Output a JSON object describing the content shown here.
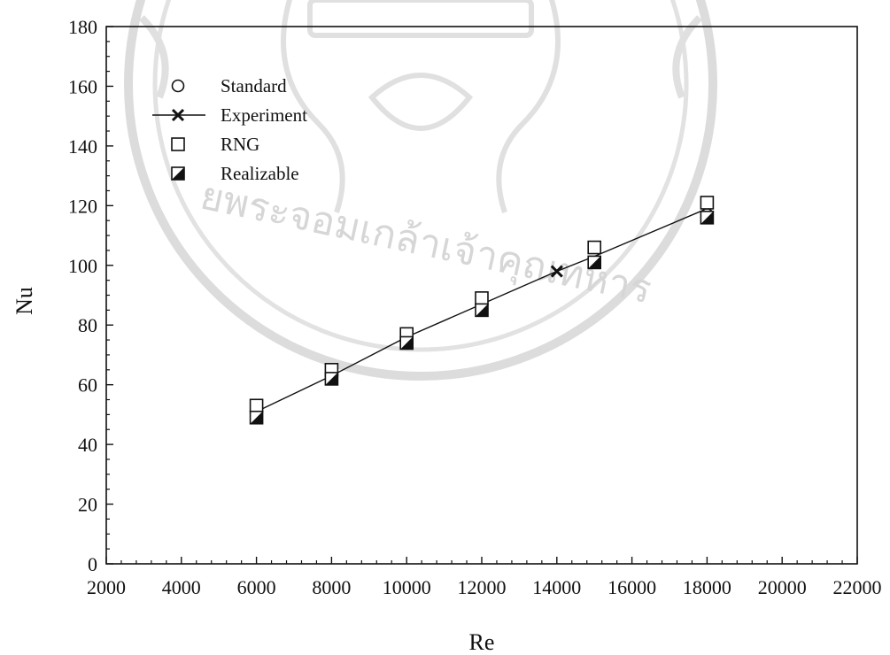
{
  "chart_data": {
    "type": "scatter",
    "xlabel": "Re",
    "ylabel": "Nu",
    "xlim": [
      2000,
      22000
    ],
    "ylim": [
      0,
      180
    ],
    "xticks": [
      "2000",
      "4000",
      "6000",
      "8000",
      "10000",
      "12000",
      "14000",
      "16000",
      "18000",
      "20000",
      "22000"
    ],
    "yticks": [
      "0",
      "20",
      "40",
      "60",
      "80",
      "100",
      "120",
      "140",
      "160",
      "180"
    ],
    "grid": false,
    "legend_position": "top-left",
    "series": [
      {
        "name": "Standard",
        "marker": "open-circle",
        "line": false,
        "x": [
          6000,
          8000,
          10000,
          12000,
          15000,
          18000
        ],
        "y": [
          49,
          62,
          74,
          85,
          101,
          117
        ]
      },
      {
        "name": "Experiment",
        "marker": "x",
        "line": true,
        "x": [
          6000,
          8000,
          10000,
          12000,
          14000,
          15000,
          18000
        ],
        "y": [
          51,
          63,
          76,
          87,
          98,
          103,
          119
        ]
      },
      {
        "name": "RNG",
        "marker": "open-square",
        "line": false,
        "x": [
          6000,
          8000,
          10000,
          12000,
          15000,
          18000
        ],
        "y": [
          53,
          65,
          77,
          89,
          106,
          121
        ]
      },
      {
        "name": "Realizable",
        "marker": "half-filled-square",
        "line": false,
        "x": [
          6000,
          8000,
          10000,
          12000,
          15000,
          18000
        ],
        "y": [
          49,
          62,
          74,
          85,
          101,
          116
        ]
      }
    ]
  },
  "watermark": {
    "text": "ยพระจอมเกล้าเจ้าคุณทหาร",
    "color": "#d6d6d6"
  }
}
